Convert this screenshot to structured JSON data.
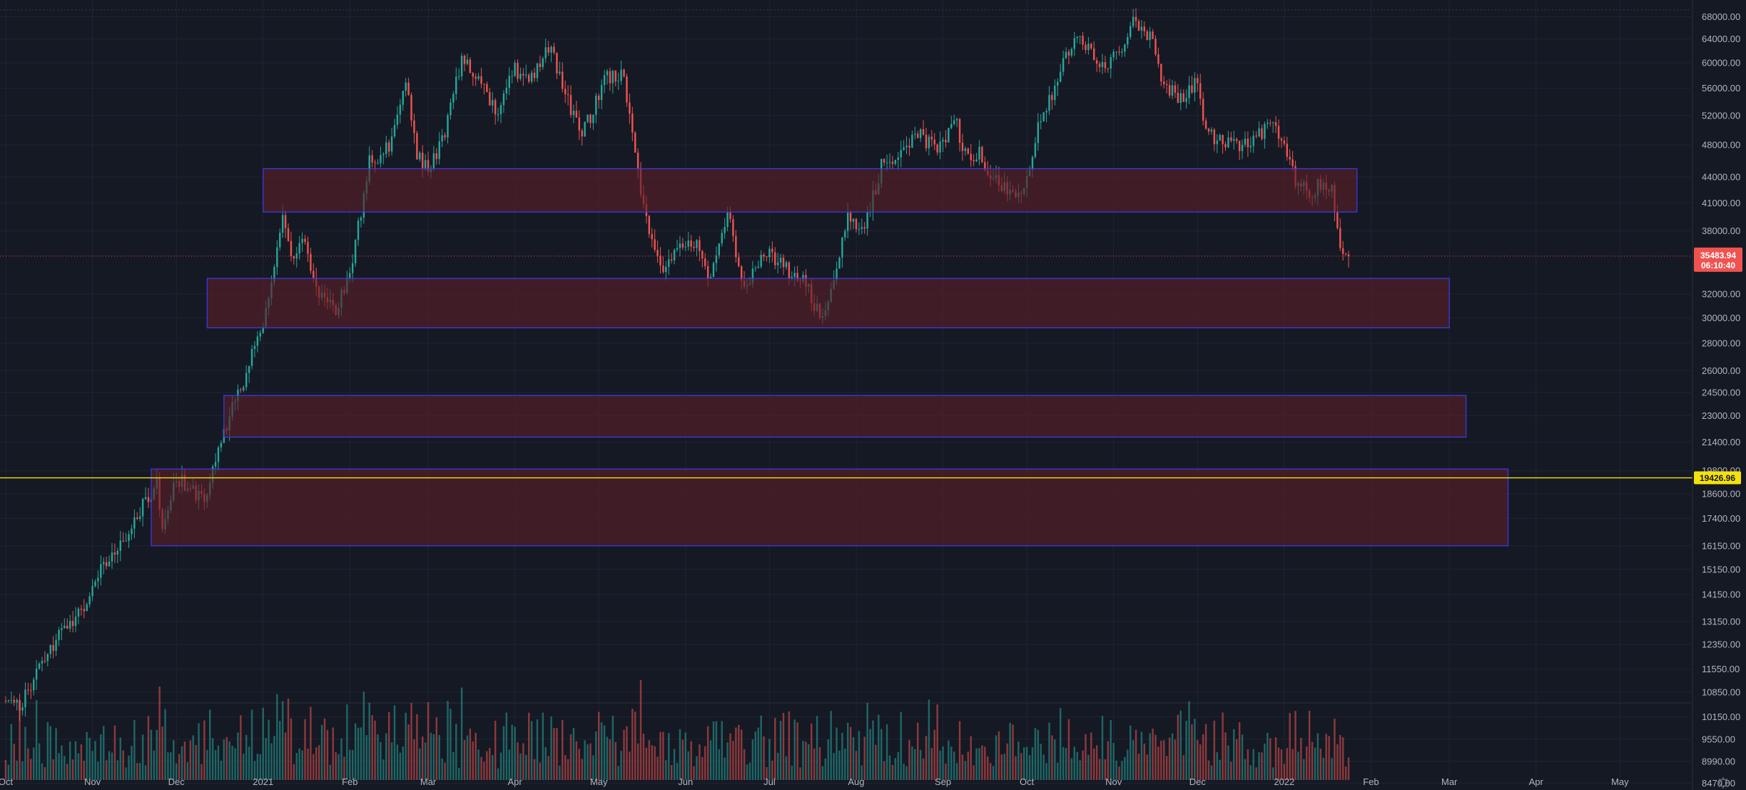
{
  "chart_data": {
    "type": "candlestick",
    "colors": {
      "background": "#151924",
      "grid": "#1f2433",
      "up": "#26a69a",
      "down": "#ef5350",
      "zone_fill": "#5a1e28",
      "zone_stroke": "#3a3df0",
      "level_line": "#f5e20a",
      "level_tag_text": "#131722",
      "current_tag_bg": "#ef5350",
      "current_tag_text": "#ffffff",
      "axis_text": "#b2b5be"
    },
    "x_axis": {
      "start": "2020-10-01",
      "end": "2022-05-31",
      "ticks": [
        {
          "date": "2020-10-01",
          "label": "Oct"
        },
        {
          "date": "2020-11-01",
          "label": "Nov"
        },
        {
          "date": "2020-12-01",
          "label": "Dec"
        },
        {
          "date": "2021-01-01",
          "label": "2021"
        },
        {
          "date": "2021-02-01",
          "label": "Feb"
        },
        {
          "date": "2021-03-01",
          "label": "Mar"
        },
        {
          "date": "2021-04-01",
          "label": "Apr"
        },
        {
          "date": "2021-05-01",
          "label": "May"
        },
        {
          "date": "2021-06-01",
          "label": "Jun"
        },
        {
          "date": "2021-07-01",
          "label": "Jul"
        },
        {
          "date": "2021-08-01",
          "label": "Aug"
        },
        {
          "date": "2021-09-01",
          "label": "Sep"
        },
        {
          "date": "2021-10-01",
          "label": "Oct"
        },
        {
          "date": "2021-11-01",
          "label": "Nov"
        },
        {
          "date": "2021-12-01",
          "label": "Dec"
        },
        {
          "date": "2022-01-01",
          "label": "2022"
        },
        {
          "date": "2022-02-01",
          "label": "Feb"
        },
        {
          "date": "2022-03-01",
          "label": "Mar"
        },
        {
          "date": "2022-04-01",
          "label": "Apr"
        },
        {
          "date": "2022-05-01",
          "label": "May"
        }
      ]
    },
    "y_axis": {
      "scale": "log",
      "range": [
        8350,
        69800
      ],
      "ticks": [
        {
          "value": 68000,
          "label": "68000.00"
        },
        {
          "value": 64000,
          "label": "64000.00"
        },
        {
          "value": 60000,
          "label": "60000.00"
        },
        {
          "value": 56000,
          "label": "56000.00"
        },
        {
          "value": 52000,
          "label": "52000.00"
        },
        {
          "value": 48000,
          "label": "48000.00"
        },
        {
          "value": 44000,
          "label": "44000.00"
        },
        {
          "value": 41000,
          "label": "41000.00"
        },
        {
          "value": 38000,
          "label": "38000.00"
        },
        {
          "value": 32000,
          "label": "32000.00"
        },
        {
          "value": 30000,
          "label": "30000.00"
        },
        {
          "value": 28000,
          "label": "28000.00"
        },
        {
          "value": 26000,
          "label": "26000.00"
        },
        {
          "value": 24500,
          "label": "24500.00"
        },
        {
          "value": 23000,
          "label": "23000.00"
        },
        {
          "value": 21400,
          "label": "21400.00"
        },
        {
          "value": 19800,
          "label": "19800.00"
        },
        {
          "value": 18600,
          "label": "18600.00"
        },
        {
          "value": 17400,
          "label": "17400.00"
        },
        {
          "value": 16150,
          "label": "16150.00"
        },
        {
          "value": 15150,
          "label": "15150.00"
        },
        {
          "value": 14150,
          "label": "14150.00"
        },
        {
          "value": 13150,
          "label": "13150.00"
        },
        {
          "value": 12350,
          "label": "12350.00"
        },
        {
          "value": 11550,
          "label": "11550.00"
        },
        {
          "value": 10850,
          "label": "10850.00"
        },
        {
          "value": 10150,
          "label": "10150.00"
        },
        {
          "value": 9550,
          "label": "9550.00"
        },
        {
          "value": 8990,
          "label": "8990.00"
        },
        {
          "value": 8470,
          "label": "8470.00"
        }
      ]
    },
    "price_keypoints": [
      [
        "2020-10-01",
        10600
      ],
      [
        "2020-10-07",
        10550
      ],
      [
        "2020-10-12",
        11400
      ],
      [
        "2020-10-21",
        12900
      ],
      [
        "2020-10-28",
        13400
      ],
      [
        "2020-11-05",
        15500
      ],
      [
        "2020-11-12",
        16300
      ],
      [
        "2020-11-18",
        17800
      ],
      [
        "2020-11-24",
        19100
      ],
      [
        "2020-11-26",
        17000
      ],
      [
        "2020-12-01",
        19400
      ],
      [
        "2020-12-06",
        19000
      ],
      [
        "2020-12-11",
        18000
      ],
      [
        "2020-12-16",
        21300
      ],
      [
        "2020-12-21",
        23400
      ],
      [
        "2020-12-27",
        26500
      ],
      [
        "2021-01-01",
        29300
      ],
      [
        "2021-01-05",
        34000
      ],
      [
        "2021-01-08",
        40500
      ],
      [
        "2021-01-11",
        35500
      ],
      [
        "2021-01-15",
        37000
      ],
      [
        "2021-01-22",
        31500
      ],
      [
        "2021-01-27",
        30500
      ],
      [
        "2021-02-01",
        33500
      ],
      [
        "2021-02-08",
        46000
      ],
      [
        "2021-02-15",
        47500
      ],
      [
        "2021-02-21",
        57500
      ],
      [
        "2021-02-25",
        47000
      ],
      [
        "2021-03-01",
        45000
      ],
      [
        "2021-03-06",
        48500
      ],
      [
        "2021-03-13",
        61000
      ],
      [
        "2021-03-19",
        57500
      ],
      [
        "2021-03-25",
        52500
      ],
      [
        "2021-04-01",
        58700
      ],
      [
        "2021-04-06",
        57000
      ],
      [
        "2021-04-14",
        63500
      ],
      [
        "2021-04-18",
        56000
      ],
      [
        "2021-04-25",
        49000
      ],
      [
        "2021-05-03",
        57500
      ],
      [
        "2021-05-10",
        58000
      ],
      [
        "2021-05-13",
        49500
      ],
      [
        "2021-05-19",
        37000
      ],
      [
        "2021-05-24",
        34500
      ],
      [
        "2021-05-30",
        36000
      ],
      [
        "2021-06-05",
        36500
      ],
      [
        "2021-06-10",
        33000
      ],
      [
        "2021-06-16",
        40000
      ],
      [
        "2021-06-22",
        32500
      ],
      [
        "2021-06-29",
        35800
      ],
      [
        "2021-07-06",
        34500
      ],
      [
        "2021-07-13",
        33200
      ],
      [
        "2021-07-20",
        29800
      ],
      [
        "2021-07-24",
        33800
      ],
      [
        "2021-07-29",
        39900
      ],
      [
        "2021-08-04",
        38000
      ],
      [
        "2021-08-10",
        45500
      ],
      [
        "2021-08-16",
        46800
      ],
      [
        "2021-08-23",
        49500
      ],
      [
        "2021-08-30",
        47000
      ],
      [
        "2021-09-06",
        51800
      ],
      [
        "2021-09-08",
        46500
      ],
      [
        "2021-09-14",
        47000
      ],
      [
        "2021-09-21",
        42800
      ],
      [
        "2021-09-29",
        41500
      ],
      [
        "2021-10-04",
        49000
      ],
      [
        "2021-10-10",
        55000
      ],
      [
        "2021-10-15",
        61500
      ],
      [
        "2021-10-20",
        65000
      ],
      [
        "2021-10-27",
        58500
      ],
      [
        "2021-11-02",
        61500
      ],
      [
        "2021-11-09",
        67500
      ],
      [
        "2021-11-15",
        64000
      ],
      [
        "2021-11-19",
        56500
      ],
      [
        "2021-11-26",
        54000
      ],
      [
        "2021-12-01",
        57500
      ],
      [
        "2021-12-04",
        49500
      ],
      [
        "2021-12-10",
        48500
      ],
      [
        "2021-12-16",
        47500
      ],
      [
        "2021-12-21",
        49000
      ],
      [
        "2021-12-27",
        50800
      ],
      [
        "2022-01-01",
        47700
      ],
      [
        "2022-01-05",
        43500
      ],
      [
        "2022-01-10",
        41800
      ],
      [
        "2022-01-13",
        42800
      ],
      [
        "2022-01-18",
        42300
      ],
      [
        "2022-01-21",
        36200
      ],
      [
        "2022-01-24",
        35500
      ]
    ],
    "zones": [
      {
        "start": "2021-01-01",
        "end": "2022-01-27",
        "low": 40000,
        "high": 45000
      },
      {
        "start": "2020-12-12",
        "end": "2022-02-29",
        "low": 29200,
        "high": 33400
      },
      {
        "start": "2020-12-18",
        "end": "2022-03-07",
        "low": 21700,
        "high": 24300
      },
      {
        "start": "2020-11-22",
        "end": "2022-03-22",
        "low": 16150,
        "high": 19900
      }
    ],
    "horizontal_level": {
      "value": 19426.96,
      "label": "19426.96"
    },
    "current_price": {
      "value": 35483.94,
      "label": "35483.94",
      "countdown": "06:10:40"
    }
  }
}
